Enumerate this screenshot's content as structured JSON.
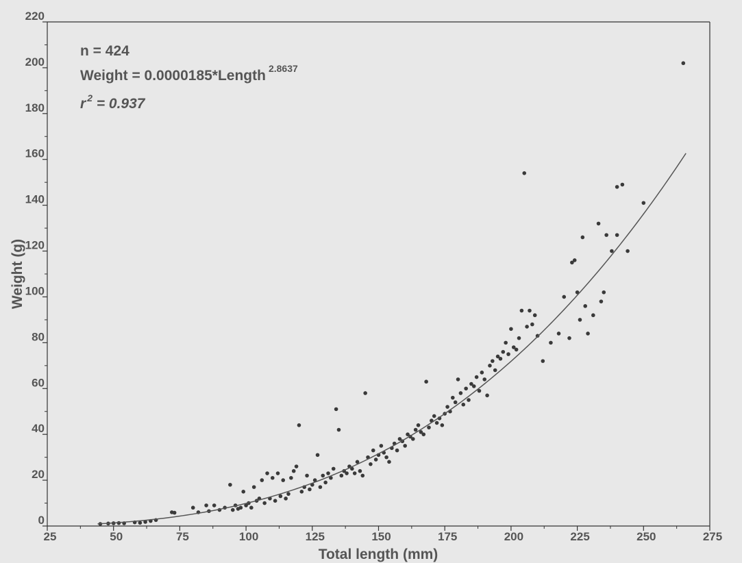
{
  "chart_data": {
    "type": "scatter",
    "title": "",
    "xlabel": "Total length (mm)",
    "ylabel": "Weight (g)",
    "xlim": [
      25,
      275
    ],
    "ylim": [
      0,
      220
    ],
    "xticks": [
      "25",
      "50",
      "75",
      "100",
      "125",
      "150",
      "175",
      "200",
      "225",
      "250",
      "275"
    ],
    "yticks": [
      "0",
      "20",
      "40",
      "60",
      "80",
      "100",
      "120",
      "140",
      "160",
      "180",
      "200",
      "220"
    ],
    "grid": false,
    "annotations": {
      "n_text": "n = 424",
      "equation_main": "Weight = 0.0000185*Length",
      "equation_exponent": "2.8637",
      "r2_prefix": "r",
      "r2_superscript": "2",
      "r2_value": " = 0.937"
    },
    "fit": {
      "a": 1.85e-05,
      "b": 2.8637,
      "x_range": [
        44,
        266
      ]
    },
    "series": [
      {
        "points": [
          [
            45,
            0.9
          ],
          [
            48,
            1.1
          ],
          [
            50,
            1.2
          ],
          [
            52,
            1.3
          ],
          [
            54,
            1.2
          ],
          [
            58,
            1.6
          ],
          [
            60,
            1.4
          ],
          [
            62,
            1.8
          ],
          [
            64,
            2.2
          ],
          [
            66,
            2.6
          ],
          [
            72,
            6
          ],
          [
            73,
            5.8
          ],
          [
            80,
            8
          ],
          [
            82,
            6
          ],
          [
            85,
            9
          ],
          [
            86,
            6.5
          ],
          [
            88,
            9
          ],
          [
            90,
            7
          ],
          [
            92,
            8
          ],
          [
            94,
            18
          ],
          [
            95,
            7
          ],
          [
            96,
            9
          ],
          [
            97,
            7.5
          ],
          [
            98,
            8
          ],
          [
            99,
            15
          ],
          [
            100,
            9
          ],
          [
            101,
            10
          ],
          [
            102,
            8
          ],
          [
            103,
            17
          ],
          [
            104,
            11
          ],
          [
            105,
            12
          ],
          [
            106,
            20
          ],
          [
            107,
            10
          ],
          [
            108,
            23
          ],
          [
            109,
            12
          ],
          [
            110,
            21
          ],
          [
            111,
            11
          ],
          [
            112,
            23
          ],
          [
            113,
            13
          ],
          [
            114,
            20
          ],
          [
            115,
            12
          ],
          [
            116,
            14
          ],
          [
            117,
            21
          ],
          [
            118,
            24
          ],
          [
            119,
            26
          ],
          [
            120,
            44
          ],
          [
            121,
            15
          ],
          [
            122,
            17
          ],
          [
            123,
            22
          ],
          [
            124,
            16
          ],
          [
            125,
            18
          ],
          [
            126,
            20
          ],
          [
            127,
            31
          ],
          [
            128,
            17
          ],
          [
            129,
            22
          ],
          [
            130,
            19
          ],
          [
            131,
            23
          ],
          [
            132,
            21
          ],
          [
            133,
            25
          ],
          [
            134,
            51
          ],
          [
            135,
            42
          ],
          [
            136,
            22
          ],
          [
            137,
            24
          ],
          [
            138,
            23
          ],
          [
            139,
            26
          ],
          [
            140,
            25
          ],
          [
            141,
            23
          ],
          [
            142,
            28
          ],
          [
            143,
            24
          ],
          [
            144,
            22
          ],
          [
            145,
            58
          ],
          [
            146,
            30
          ],
          [
            147,
            27
          ],
          [
            148,
            33
          ],
          [
            149,
            29
          ],
          [
            150,
            31
          ],
          [
            151,
            35
          ],
          [
            152,
            32
          ],
          [
            153,
            30
          ],
          [
            154,
            28
          ],
          [
            155,
            34
          ],
          [
            156,
            36
          ],
          [
            157,
            33
          ],
          [
            158,
            38
          ],
          [
            159,
            37
          ],
          [
            160,
            35
          ],
          [
            161,
            40
          ],
          [
            162,
            39
          ],
          [
            163,
            38
          ],
          [
            164,
            42
          ],
          [
            165,
            44
          ],
          [
            166,
            41
          ],
          [
            167,
            40
          ],
          [
            168,
            63
          ],
          [
            169,
            43
          ],
          [
            170,
            46
          ],
          [
            171,
            48
          ],
          [
            172,
            45
          ],
          [
            173,
            47
          ],
          [
            174,
            44
          ],
          [
            175,
            49
          ],
          [
            176,
            52
          ],
          [
            177,
            50
          ],
          [
            178,
            56
          ],
          [
            179,
            54
          ],
          [
            180,
            64
          ],
          [
            181,
            58
          ],
          [
            182,
            53
          ],
          [
            183,
            60
          ],
          [
            184,
            55
          ],
          [
            185,
            62
          ],
          [
            186,
            61
          ],
          [
            187,
            65
          ],
          [
            188,
            59
          ],
          [
            189,
            67
          ],
          [
            190,
            64
          ],
          [
            191,
            57
          ],
          [
            192,
            70
          ],
          [
            193,
            72
          ],
          [
            194,
            68
          ],
          [
            195,
            74
          ],
          [
            196,
            73
          ],
          [
            197,
            76
          ],
          [
            198,
            80
          ],
          [
            199,
            75
          ],
          [
            200,
            86
          ],
          [
            201,
            78
          ],
          [
            202,
            77
          ],
          [
            203,
            82
          ],
          [
            204,
            94
          ],
          [
            205,
            154
          ],
          [
            206,
            87
          ],
          [
            207,
            94
          ],
          [
            208,
            88
          ],
          [
            209,
            92
          ],
          [
            210,
            83
          ],
          [
            212,
            72
          ],
          [
            215,
            80
          ],
          [
            218,
            84
          ],
          [
            220,
            100
          ],
          [
            222,
            82
          ],
          [
            224,
            116
          ],
          [
            225,
            102
          ],
          [
            226,
            90
          ],
          [
            227,
            126
          ],
          [
            228,
            96
          ],
          [
            229,
            84
          ],
          [
            231,
            92
          ],
          [
            233,
            132
          ],
          [
            234,
            98
          ],
          [
            235,
            102
          ],
          [
            236,
            127
          ],
          [
            238,
            120
          ],
          [
            240,
            148
          ],
          [
            242,
            149
          ],
          [
            244,
            120
          ],
          [
            250,
            141
          ],
          [
            265,
            202
          ],
          [
            240,
            127
          ],
          [
            223,
            115
          ]
        ]
      }
    ]
  }
}
